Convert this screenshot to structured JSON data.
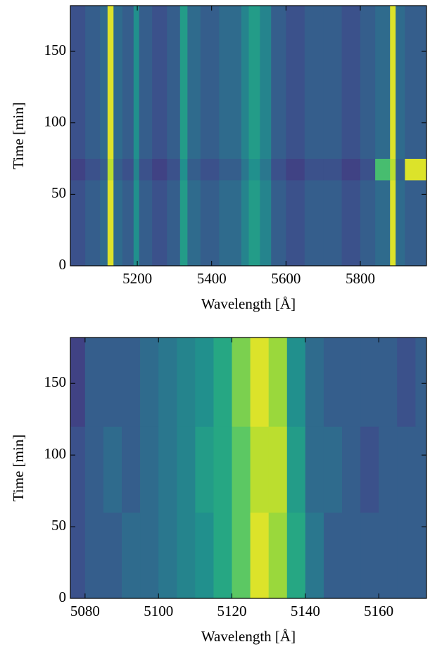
{
  "chart_data": [
    {
      "type": "heatmap",
      "colormap": "viridis",
      "xlabel": "Wavelength [Å]",
      "ylabel": "Time [min]",
      "xlim": [
        5020,
        5978
      ],
      "ylim": [
        0,
        182
      ],
      "xticks": [
        5200,
        5400,
        5600,
        5800
      ],
      "yticks": [
        0,
        50,
        100,
        150
      ],
      "x": [
        5020,
        5060,
        5100,
        5120,
        5136,
        5160,
        5190,
        5205,
        5240,
        5280,
        5315,
        5335,
        5370,
        5420,
        5480,
        5500,
        5530,
        5560,
        5600,
        5650,
        5700,
        5750,
        5800,
        5840,
        5880,
        5895,
        5920,
        5978
      ],
      "y": [
        0,
        60,
        75,
        182
      ],
      "z": [
        [
          0.25,
          0.3,
          0.35,
          0.95,
          0.35,
          0.3,
          0.5,
          0.3,
          0.25,
          0.3,
          0.55,
          0.35,
          0.3,
          0.35,
          0.45,
          0.55,
          0.45,
          0.3,
          0.25,
          0.3,
          0.3,
          0.25,
          0.3,
          0.35,
          0.95,
          0.35,
          0.3
        ],
        [
          0.2,
          0.25,
          0.3,
          0.9,
          0.3,
          0.25,
          0.45,
          0.25,
          0.2,
          0.25,
          0.5,
          0.3,
          0.25,
          0.3,
          0.4,
          0.5,
          0.4,
          0.25,
          0.2,
          0.25,
          0.25,
          0.2,
          0.25,
          0.7,
          0.9,
          0.3,
          0.95
        ],
        [
          0.25,
          0.3,
          0.35,
          0.95,
          0.35,
          0.3,
          0.5,
          0.3,
          0.25,
          0.3,
          0.55,
          0.35,
          0.3,
          0.35,
          0.45,
          0.55,
          0.45,
          0.3,
          0.25,
          0.3,
          0.3,
          0.25,
          0.3,
          0.35,
          0.95,
          0.35,
          0.3
        ]
      ]
    },
    {
      "type": "heatmap",
      "colormap": "viridis",
      "xlabel": "Wavelength [Å]",
      "ylabel": "Time [min]",
      "xlim": [
        5076,
        5173
      ],
      "ylim": [
        0,
        182
      ],
      "xticks": [
        5080,
        5100,
        5120,
        5140,
        5160
      ],
      "yticks": [
        0,
        50,
        100,
        150
      ],
      "x": [
        5076,
        5080,
        5085,
        5090,
        5095,
        5100,
        5105,
        5110,
        5115,
        5120,
        5125,
        5130,
        5135,
        5140,
        5145,
        5150,
        5155,
        5160,
        5165,
        5170,
        5173
      ],
      "y": [
        0,
        60,
        120,
        182
      ],
      "z": [
        [
          0.25,
          0.3,
          0.3,
          0.35,
          0.35,
          0.4,
          0.45,
          0.5,
          0.6,
          0.75,
          0.95,
          0.85,
          0.6,
          0.4,
          0.3,
          0.3,
          0.3,
          0.3,
          0.3,
          0.3
        ],
        [
          0.25,
          0.3,
          0.35,
          0.3,
          0.35,
          0.4,
          0.45,
          0.55,
          0.6,
          0.75,
          0.9,
          0.9,
          0.55,
          0.35,
          0.35,
          0.3,
          0.25,
          0.3,
          0.3,
          0.3
        ],
        [
          0.2,
          0.3,
          0.3,
          0.3,
          0.35,
          0.4,
          0.45,
          0.5,
          0.6,
          0.8,
          0.95,
          0.85,
          0.5,
          0.35,
          0.3,
          0.3,
          0.3,
          0.3,
          0.25,
          0.3
        ]
      ]
    }
  ]
}
